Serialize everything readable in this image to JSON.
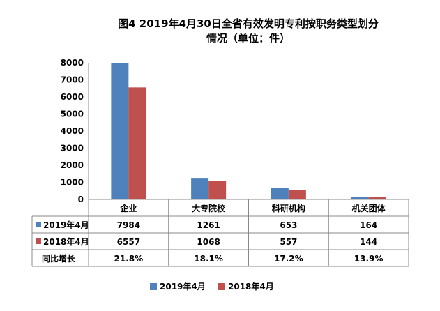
{
  "chart_data": {
    "type": "bar",
    "title_line1": "图4  2019年4月30日全省有效发明专利按职务类型划分",
    "title_line2": "情况（单位：件）",
    "categories": [
      "企业",
      "大专院校",
      "科研机构",
      "机关团体"
    ],
    "series": [
      {
        "name": "2019年4月",
        "values": [
          7984,
          1261,
          653,
          164
        ],
        "color": "#4f81bd"
      },
      {
        "name": "2018年4月",
        "values": [
          6557,
          1068,
          557,
          144
        ],
        "color": "#c0504d"
      }
    ],
    "table_rows": [
      {
        "label": "2019年4月",
        "cells": [
          "7984",
          "1261",
          "653",
          "164"
        ],
        "color": "#4f81bd"
      },
      {
        "label": "2018年4月",
        "cells": [
          "6557",
          "1068",
          "557",
          "144"
        ],
        "color": "#c0504d"
      },
      {
        "label": "同比增长",
        "cells": [
          "21.8%",
          "18.1%",
          "17.2%",
          "13.9%"
        ],
        "color": ""
      }
    ],
    "y_ticks": [
      "0",
      "1000",
      "2000",
      "3000",
      "4000",
      "5000",
      "6000",
      "7000",
      "8000"
    ],
    "ylim": [
      0,
      8000
    ],
    "grid": false,
    "legend_position": "bottom"
  }
}
